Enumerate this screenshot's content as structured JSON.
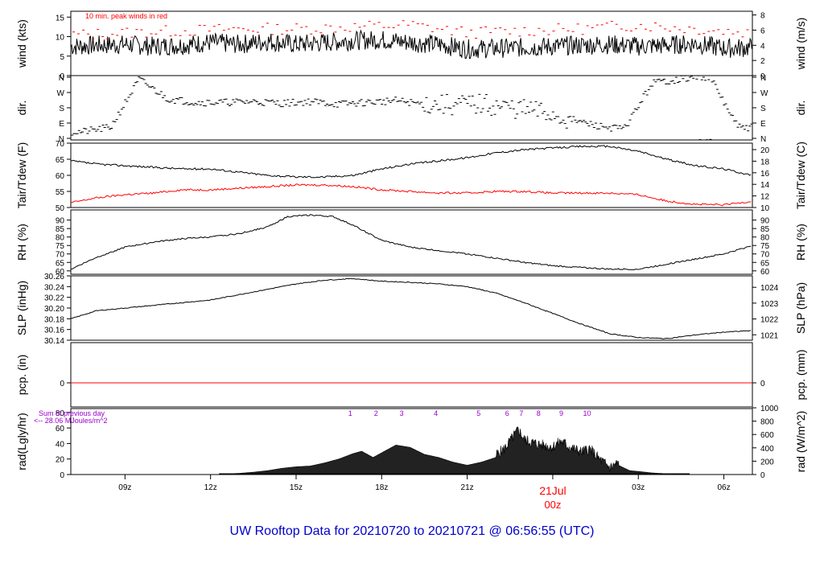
{
  "page_title": "UW Rooftop Data for 20210720  to  20210721 @ 06:56:55  (UTC)",
  "colors": {
    "title": "#0000cc",
    "peak": "#ff0000",
    "precip": "#ff0000",
    "dewpoint": "#ff0000",
    "annotation": "#9900cc",
    "line": "#000000"
  },
  "x_axis": {
    "ticks": [
      {
        "hour": 9,
        "label": "09z"
      },
      {
        "hour": 12,
        "label": "12z"
      },
      {
        "hour": 15,
        "label": "15z"
      },
      {
        "hour": 18,
        "label": "18z"
      },
      {
        "hour": 21,
        "label": "21z"
      },
      {
        "hour": 24,
        "label": "00z",
        "highlight": true
      },
      {
        "hour": 27,
        "label": "03z"
      },
      {
        "hour": 30,
        "label": "06z"
      }
    ],
    "date_label": "21Jul",
    "range_hours": [
      7.1,
      31.0
    ]
  },
  "chart_data": [
    {
      "id": "wind",
      "type": "line",
      "ylabel": "wind (kts)",
      "ylabel_right": "wind (m/s)",
      "ylim": [
        0,
        16.5
      ],
      "yticks_left": [
        "0",
        "5",
        "10",
        "15"
      ],
      "yticks_right": [
        "0",
        "2",
        "4",
        "6",
        "8"
      ],
      "annotation": "10 min. peak winds in red",
      "series": [
        {
          "x": [
            7.2,
            8,
            9,
            10,
            11,
            12,
            13,
            14,
            15,
            16,
            17,
            18,
            19,
            20,
            21,
            22,
            23,
            24,
            25,
            26,
            27,
            28,
            29,
            30,
            31
          ],
          "values": [
            7.5,
            7.8,
            8,
            7.5,
            7.8,
            8.5,
            8,
            8.8,
            8,
            8.5,
            9,
            9.2,
            8.5,
            8,
            6.8,
            7,
            7.2,
            7.5,
            7.8,
            8,
            7.5,
            7.8,
            8.2,
            7,
            7.2
          ]
        },
        {
          "x": [
            7.5,
            9,
            11,
            13,
            15,
            17,
            19,
            21,
            23,
            25,
            27,
            29,
            31
          ],
          "values": [
            10.5,
            11,
            11.5,
            12,
            12,
            12.5,
            13,
            11,
            11.5,
            12,
            13,
            12,
            11
          ]
        }
      ]
    },
    {
      "id": "dir",
      "type": "scatter",
      "ylabel": "dir.",
      "ylabel_right": "dir.",
      "ylim": [
        0,
        360
      ],
      "yticks_left": [
        "N",
        "E",
        "S",
        "W",
        "N"
      ],
      "yticks_right": [
        "N",
        "E",
        "S",
        "W",
        "N"
      ],
      "series": [
        {
          "x": [
            7.5,
            8.5,
            9.5,
            10.5,
            11.5,
            12.5,
            13.5,
            14.5,
            15.5,
            16.5,
            17.5,
            18.5,
            19.5,
            20.5,
            21.5,
            22.5,
            23.5,
            24.5,
            25.5,
            26.5,
            27.5,
            28.5,
            29.5,
            30.5
          ],
          "values": [
            45,
            70,
            340,
            230,
            210,
            210,
            215,
            205,
            215,
            200,
            210,
            220,
            200,
            195,
            200,
            180,
            160,
            120,
            80,
            60,
            320,
            340,
            355,
            70
          ]
        }
      ]
    },
    {
      "id": "temp",
      "type": "line",
      "ylabel": "Tair/Tdew (F)",
      "ylabel_right": "Tair/Tdew (C)",
      "ylim": [
        50,
        70
      ],
      "yticks_left": [
        "50",
        "55",
        "60",
        "65",
        "70"
      ],
      "yticks_right": [
        "10",
        "12",
        "14",
        "16",
        "18",
        "20"
      ],
      "series": [
        {
          "x": [
            7.1,
            8,
            9,
            10,
            11,
            12,
            13,
            14,
            15,
            16,
            17,
            18,
            19,
            20,
            21,
            22,
            23,
            24,
            25,
            26,
            27,
            28,
            29,
            30,
            31
          ],
          "values": [
            64.5,
            63.5,
            63,
            62.5,
            62,
            62,
            61,
            60,
            59.5,
            59.5,
            60,
            62,
            63.5,
            64.5,
            65.5,
            67,
            68,
            68.5,
            69,
            69,
            67.5,
            65,
            63,
            62,
            60
          ]
        },
        {
          "x": [
            7.1,
            8,
            9,
            10,
            11,
            12,
            13,
            14,
            15,
            16,
            17,
            18,
            19,
            20,
            21,
            22,
            23,
            24,
            25,
            26,
            27,
            28,
            29,
            30,
            31
          ],
          "values": [
            51.5,
            53,
            54,
            54.5,
            55.5,
            55.5,
            56,
            56.5,
            57,
            57,
            56.5,
            55.5,
            55,
            54.5,
            54.5,
            55,
            55,
            54.5,
            54.5,
            54.5,
            54,
            52,
            51,
            50.8,
            52
          ]
        }
      ]
    },
    {
      "id": "rh",
      "type": "line",
      "ylabel": "RH (%)",
      "ylabel_right": "RH (%)",
      "ylim": [
        58,
        96
      ],
      "yticks_left": [
        "60",
        "65",
        "70",
        "75",
        "80",
        "85",
        "90"
      ],
      "yticks_right": [
        "60",
        "65",
        "70",
        "75",
        "80",
        "85",
        "90"
      ],
      "series": [
        {
          "x": [
            7.1,
            8,
            9,
            10,
            11,
            12,
            13,
            14,
            14.7,
            15.5,
            16.3,
            17,
            18,
            19,
            20,
            21,
            22,
            23,
            24,
            25,
            26,
            27,
            28,
            29,
            30,
            31
          ],
          "values": [
            61,
            68,
            74,
            77,
            79,
            80,
            82,
            86,
            92,
            93,
            92,
            87,
            78,
            74,
            72,
            70,
            67.5,
            65,
            63,
            62,
            61,
            61,
            64,
            67,
            70,
            75
          ]
        }
      ]
    },
    {
      "id": "slp",
      "type": "line",
      "ylabel": "SLP (inHg)",
      "ylabel_right": "SLP (hPa)",
      "ylim": [
        30.14,
        30.26
      ],
      "yticks_left": [
        "30.14",
        "30.16",
        "30.18",
        "30.20",
        "30.22",
        "30.24",
        "30.26"
      ],
      "yticks_right": [
        "1021",
        "1022",
        "1023",
        "1024"
      ],
      "series": [
        {
          "x": [
            7.1,
            8,
            9,
            10,
            11,
            12,
            13,
            14,
            15,
            16,
            17,
            18,
            19,
            20,
            21,
            22,
            23,
            24,
            25,
            26,
            27,
            28,
            29,
            30,
            31
          ],
          "values": [
            30.18,
            30.195,
            30.2,
            30.205,
            30.21,
            30.215,
            30.225,
            30.235,
            30.245,
            30.252,
            30.255,
            30.25,
            30.248,
            30.245,
            30.24,
            30.228,
            30.21,
            30.19,
            30.17,
            30.152,
            30.145,
            30.143,
            30.15,
            30.155,
            30.158
          ]
        }
      ]
    },
    {
      "id": "pcp",
      "type": "line",
      "ylabel": "pcp. (in)",
      "ylabel_right": "pcp. (mm)",
      "ylim": [
        -1,
        1
      ],
      "yticks_left": [
        "0"
      ],
      "yticks_right": [
        "0"
      ],
      "series": [
        {
          "x": [
            7.1,
            31
          ],
          "values": [
            0,
            0
          ]
        }
      ]
    },
    {
      "id": "rad",
      "type": "area",
      "ylabel": "rad(Lgly/hr)",
      "ylabel_right": "rad (W/m^2)",
      "ylim": [
        0,
        85
      ],
      "yticks_left": [
        "0",
        "20",
        "40",
        "60",
        "80"
      ],
      "yticks_right": [
        "0",
        "200",
        "400",
        "600",
        "800",
        "1000"
      ],
      "annotations": [
        "Sum of previous day",
        "<-- 28.06 MJoules/m^2"
      ],
      "hour_labels": [
        {
          "x": 16.9,
          "label": "1"
        },
        {
          "x": 17.8,
          "label": "2"
        },
        {
          "x": 18.7,
          "label": "3"
        },
        {
          "x": 19.9,
          "label": "4"
        },
        {
          "x": 21.4,
          "label": "5"
        },
        {
          "x": 22.4,
          "label": "6"
        },
        {
          "x": 22.9,
          "label": "7"
        },
        {
          "x": 23.5,
          "label": "8"
        },
        {
          "x": 24.3,
          "label": "9"
        },
        {
          "x": 25.2,
          "label": "10"
        }
      ],
      "series": [
        {
          "x": [
            12.3,
            13,
            13.5,
            14,
            14.5,
            15,
            15.5,
            16,
            16.5,
            17,
            17.3,
            17.7,
            18,
            18.5,
            19,
            19.5,
            20,
            20.5,
            21,
            21.5,
            22,
            22.3,
            22.6,
            22.8,
            23,
            23.3,
            23.6,
            24,
            24.3,
            24.6,
            25,
            25.3,
            25.6,
            26,
            26.3,
            26.7,
            27,
            27.5,
            28,
            28.8
          ],
          "values": [
            0.5,
            1.5,
            3,
            5,
            8,
            10,
            11,
            15,
            20,
            27,
            30,
            22,
            28,
            38,
            35,
            26,
            22,
            16,
            12,
            16,
            22,
            30,
            45,
            55,
            42,
            38,
            35,
            33,
            40,
            32,
            26,
            30,
            18,
            6,
            12,
            5,
            4,
            2,
            1,
            0
          ]
        }
      ]
    }
  ]
}
